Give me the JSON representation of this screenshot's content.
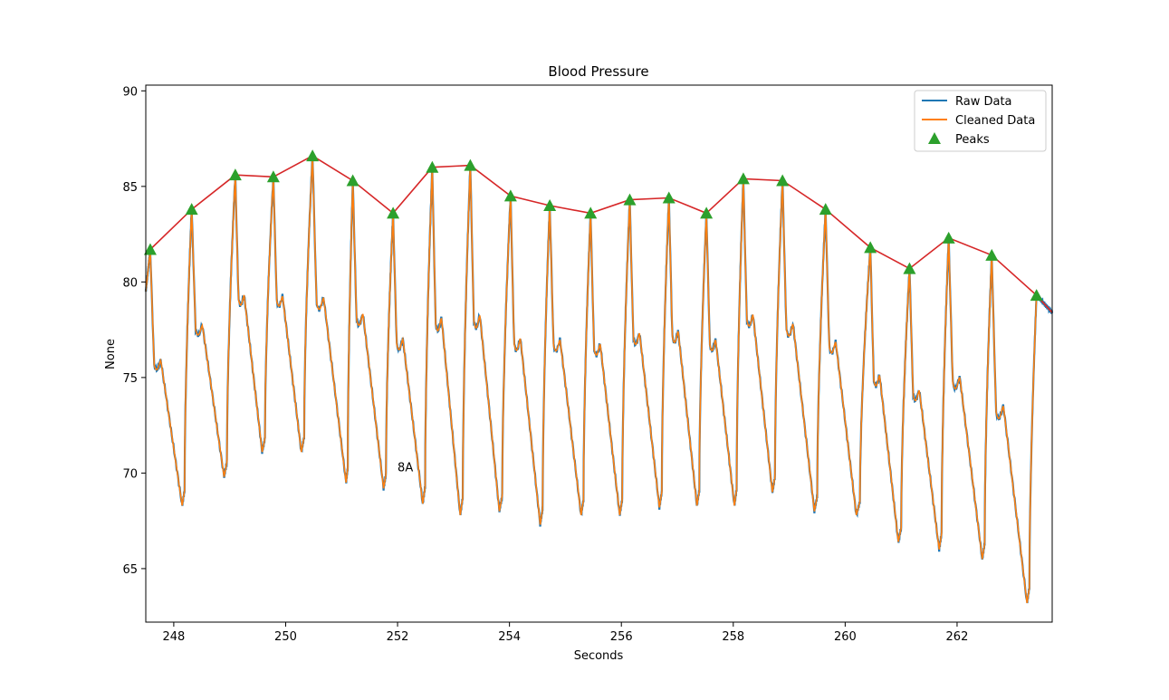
{
  "chart_data": {
    "type": "line",
    "title": "Blood Pressure",
    "xlabel": "Seconds",
    "ylabel": "None",
    "xlim": [
      247.5,
      263.7
    ],
    "ylim": [
      62.2,
      90.3
    ],
    "x_ticks": [
      248,
      250,
      252,
      254,
      256,
      258,
      260,
      262
    ],
    "y_ticks": [
      65,
      70,
      75,
      80,
      85,
      90
    ],
    "grid": false,
    "legend": {
      "placement": "top-right",
      "entries": [
        {
          "label": "Raw Data",
          "color": "#1f77b4",
          "marker": "line"
        },
        {
          "label": "Cleaned Data",
          "color": "#ff7f0e",
          "marker": "line"
        },
        {
          "label": "Peaks",
          "color": "#2ca02c",
          "marker": "triangle"
        }
      ]
    },
    "annotation": {
      "text": "8A",
      "x": 252.0,
      "y": 70.1
    },
    "envelope_color": "#d62728",
    "peaks": {
      "name": "Peaks",
      "x": [
        247.58,
        248.32,
        249.1,
        249.78,
        250.48,
        251.2,
        251.92,
        252.62,
        253.3,
        254.02,
        254.72,
        255.45,
        256.15,
        256.85,
        257.52,
        258.18,
        258.88,
        259.65,
        260.45,
        261.15,
        261.85,
        262.62,
        263.42,
        263.7
      ],
      "y": [
        81.7,
        83.8,
        85.6,
        85.5,
        86.6,
        85.3,
        83.6,
        86.0,
        86.1,
        84.5,
        84.0,
        83.6,
        84.3,
        84.4,
        83.6,
        85.4,
        85.3,
        83.8,
        81.8,
        80.7,
        82.3,
        81.4,
        79.3,
        78.4
      ]
    },
    "troughs": {
      "x": [
        248.15,
        248.9,
        249.58,
        250.28,
        251.08,
        251.75,
        252.45,
        253.12,
        253.82,
        254.55,
        255.28,
        255.97,
        256.68,
        257.35,
        258.02,
        258.7,
        259.45,
        260.2,
        260.95,
        261.68,
        262.45,
        263.25
      ],
      "y": [
        68.3,
        69.8,
        71.1,
        71.1,
        69.5,
        69.2,
        68.4,
        67.8,
        68.0,
        67.3,
        67.8,
        67.8,
        68.2,
        68.3,
        68.3,
        69.0,
        68.0,
        67.8,
        66.4,
        66.0,
        65.5,
        63.2
      ]
    },
    "series": [
      {
        "name": "Raw Data",
        "color": "#1f77b4"
      },
      {
        "name": "Cleaned Data",
        "color": "#ff7f0e"
      }
    ]
  }
}
